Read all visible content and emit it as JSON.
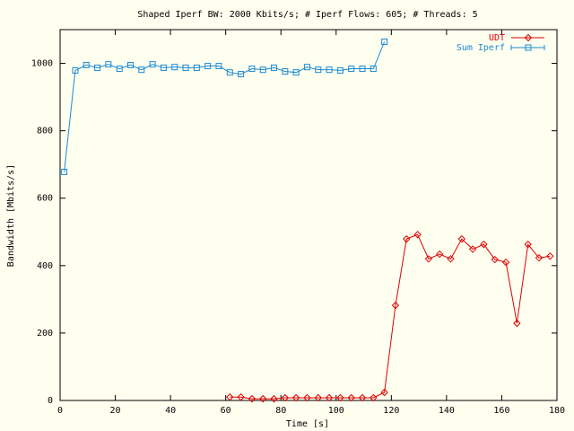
{
  "chart_data": {
    "type": "line",
    "title": "Shaped Iperf BW: 2000 Kbits/s; # Iperf Flows: 605; # Threads: 5",
    "x_label": "Time [s]",
    "y_label": "Bandwidth [Mbits/s]",
    "xlim": [
      0,
      180
    ],
    "xticks": [
      0,
      20,
      40,
      60,
      80,
      100,
      120,
      140,
      160,
      180
    ],
    "ylim": [
      0,
      1100
    ],
    "yticks": [
      0,
      200,
      400,
      600,
      800,
      1000
    ],
    "legend": "top-right",
    "series": [
      {
        "name": "UDT",
        "color": "#e00000",
        "marker": "diamond",
        "x": [
          61.5,
          65.5,
          69.5,
          73.5,
          77.5,
          81.5,
          85.5,
          89.5,
          93.5,
          97.5,
          101.5,
          105.5,
          109.5,
          113.5,
          117.5,
          121.5,
          125.5,
          129.5,
          133.5,
          137.5,
          141.5,
          145.5,
          149.5,
          153.5,
          157.5,
          161.5,
          165.5,
          169.5,
          173.5,
          177.5
        ],
        "values": [
          10,
          10,
          5,
          5,
          5,
          8,
          8,
          8,
          8,
          8,
          8,
          8,
          8,
          8,
          24,
          282,
          479,
          492,
          420,
          434,
          420,
          479,
          449,
          463,
          418,
          410,
          229,
          463,
          423,
          428
        ]
      },
      {
        "name": "Sum Iperf",
        "color": "#1a8ad4",
        "marker": "square",
        "x": [
          1.5,
          5.5,
          9.5,
          13.5,
          17.5,
          21.5,
          25.5,
          29.5,
          33.5,
          37.5,
          41.5,
          45.5,
          49.5,
          53.5,
          57.5,
          61.5,
          65.5,
          69.5,
          73.5,
          77.5,
          81.5,
          85.5,
          89.5,
          93.5,
          97.5,
          101.5,
          105.5,
          109.5,
          113.5,
          117.5
        ],
        "values": [
          678,
          979,
          995,
          987,
          997,
          984,
          995,
          981,
          997,
          987,
          989,
          987,
          987,
          992,
          992,
          973,
          968,
          984,
          981,
          987,
          976,
          973,
          989,
          981,
          981,
          979,
          984,
          984,
          984,
          1064
        ]
      }
    ]
  }
}
